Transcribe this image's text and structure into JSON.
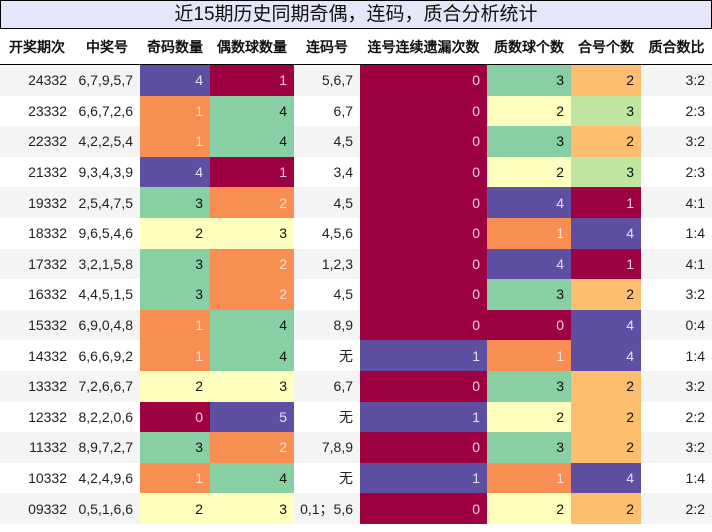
{
  "title": "近15期历史同期奇偶，连码，质合分析统计",
  "headers": [
    "开奖期次",
    "中奖号",
    "奇码数量",
    "偶数球数量",
    "连码号",
    "连号连续遗漏次数",
    "质数球个数",
    "合号个数",
    "质合数比"
  ],
  "colors": {
    "dark_red": "#9e0142",
    "purple": "#5e4fa2",
    "orange": "#f98e52",
    "green": "#88cfa4",
    "yellow": "#ffffbe",
    "light_orange": "#fdbe6f",
    "light_green": "#bfe5a0"
  },
  "rows": [
    {
      "period": "24332",
      "numbers": "6,7,9,5,7",
      "odd": "4",
      "odd_c": "c1",
      "even": "1",
      "even_c": "c0",
      "consec": "5,6,7",
      "miss": "0",
      "miss_c": "c0",
      "prime": "3",
      "prime_c": "c3",
      "composite": "2",
      "composite_c": "c5",
      "ratio": "3:2"
    },
    {
      "period": "23332",
      "numbers": "6,6,7,2,6",
      "odd": "1",
      "odd_c": "c2",
      "even": "4",
      "even_c": "c3",
      "consec": "6,7",
      "miss": "0",
      "miss_c": "c0",
      "prime": "2",
      "prime_c": "c4",
      "composite": "3",
      "composite_c": "c6",
      "ratio": "2:3"
    },
    {
      "period": "22332",
      "numbers": "4,2,2,5,4",
      "odd": "1",
      "odd_c": "c2",
      "even": "4",
      "even_c": "c3",
      "consec": "4,5",
      "miss": "0",
      "miss_c": "c0",
      "prime": "3",
      "prime_c": "c3",
      "composite": "2",
      "composite_c": "c5",
      "ratio": "3:2"
    },
    {
      "period": "21332",
      "numbers": "9,3,4,3,9",
      "odd": "4",
      "odd_c": "c1",
      "even": "1",
      "even_c": "c0",
      "consec": "3,4",
      "miss": "0",
      "miss_c": "c0",
      "prime": "2",
      "prime_c": "c4",
      "composite": "3",
      "composite_c": "c6",
      "ratio": "2:3"
    },
    {
      "period": "19332",
      "numbers": "2,5,4,7,5",
      "odd": "3",
      "odd_c": "c3",
      "even": "2",
      "even_c": "c2",
      "consec": "4,5",
      "miss": "0",
      "miss_c": "c0",
      "prime": "4",
      "prime_c": "c1",
      "composite": "1",
      "composite_c": "c0",
      "ratio": "4:1"
    },
    {
      "period": "18332",
      "numbers": "9,6,5,4,6",
      "odd": "2",
      "odd_c": "c4",
      "even": "3",
      "even_c": "c4",
      "consec": "4,5,6",
      "miss": "0",
      "miss_c": "c0",
      "prime": "1",
      "prime_c": "c2",
      "composite": "4",
      "composite_c": "c1",
      "ratio": "1:4"
    },
    {
      "period": "17332",
      "numbers": "3,2,1,5,8",
      "odd": "3",
      "odd_c": "c3",
      "even": "2",
      "even_c": "c2",
      "consec": "1,2,3",
      "miss": "0",
      "miss_c": "c0",
      "prime": "4",
      "prime_c": "c1",
      "composite": "1",
      "composite_c": "c0",
      "ratio": "4:1"
    },
    {
      "period": "16332",
      "numbers": "4,4,5,1,5",
      "odd": "3",
      "odd_c": "c3",
      "even": "2",
      "even_c": "c2",
      "consec": "4,5",
      "miss": "0",
      "miss_c": "c0",
      "prime": "3",
      "prime_c": "c3",
      "composite": "2",
      "composite_c": "c5",
      "ratio": "3:2"
    },
    {
      "period": "15332",
      "numbers": "6,9,0,4,8",
      "odd": "1",
      "odd_c": "c2",
      "even": "4",
      "even_c": "c3",
      "consec": "8,9",
      "miss": "0",
      "miss_c": "c0",
      "prime": "0",
      "prime_c": "c0",
      "composite": "4",
      "composite_c": "c1",
      "ratio": "0:4"
    },
    {
      "period": "14332",
      "numbers": "6,6,6,9,2",
      "odd": "1",
      "odd_c": "c2",
      "even": "4",
      "even_c": "c3",
      "consec": "无",
      "miss": "1",
      "miss_c": "c1",
      "prime": "1",
      "prime_c": "c2",
      "composite": "4",
      "composite_c": "c1",
      "ratio": "1:4"
    },
    {
      "period": "13332",
      "numbers": "7,2,6,6,7",
      "odd": "2",
      "odd_c": "c4",
      "even": "3",
      "even_c": "c4",
      "consec": "6,7",
      "miss": "0",
      "miss_c": "c0",
      "prime": "3",
      "prime_c": "c3",
      "composite": "2",
      "composite_c": "c5",
      "ratio": "3:2"
    },
    {
      "period": "12332",
      "numbers": "8,2,2,0,6",
      "odd": "0",
      "odd_c": "c0",
      "even": "5",
      "even_c": "c1",
      "consec": "无",
      "miss": "1",
      "miss_c": "c1",
      "prime": "2",
      "prime_c": "c4",
      "composite": "2",
      "composite_c": "c5",
      "ratio": "2:2"
    },
    {
      "period": "11332",
      "numbers": "8,9,7,2,7",
      "odd": "3",
      "odd_c": "c3",
      "even": "2",
      "even_c": "c2",
      "consec": "7,8,9",
      "miss": "0",
      "miss_c": "c0",
      "prime": "3",
      "prime_c": "c3",
      "composite": "2",
      "composite_c": "c5",
      "ratio": "3:2"
    },
    {
      "period": "10332",
      "numbers": "4,2,4,9,6",
      "odd": "1",
      "odd_c": "c2",
      "even": "4",
      "even_c": "c3",
      "consec": "无",
      "miss": "1",
      "miss_c": "c1",
      "prime": "1",
      "prime_c": "c2",
      "composite": "4",
      "composite_c": "c1",
      "ratio": "1:4"
    },
    {
      "period": "09332",
      "numbers": "0,5,1,6,6",
      "odd": "2",
      "odd_c": "c4",
      "even": "3",
      "even_c": "c4",
      "consec": "0,1；5,6",
      "miss": "0",
      "miss_c": "c0",
      "prime": "2",
      "prime_c": "c4",
      "composite": "2",
      "composite_c": "c5",
      "ratio": "2:2"
    }
  ]
}
